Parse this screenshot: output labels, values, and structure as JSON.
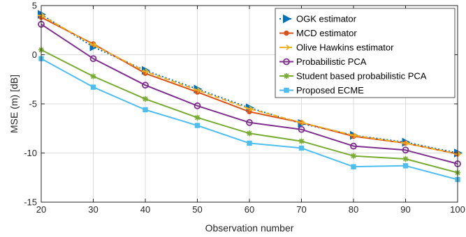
{
  "chart_data": {
    "type": "line",
    "xlabel": "Observation number",
    "ylabel": "MSE (m) [dB]",
    "xlim": [
      20,
      100
    ],
    "ylim": [
      -15,
      5
    ],
    "xticks": [
      20,
      30,
      40,
      50,
      60,
      70,
      80,
      90,
      100
    ],
    "yticks": [
      5,
      0,
      -5,
      -10,
      -15
    ],
    "grid": true,
    "legend_position": "top-right",
    "x": [
      20,
      30,
      40,
      50,
      60,
      70,
      80,
      90,
      100
    ],
    "series": [
      {
        "name": "OGK estimator",
        "color": "#0072BD",
        "marker": "triangle-right",
        "dash": "dotted",
        "values": [
          4.1,
          0.8,
          -1.6,
          -3.5,
          -5.4,
          -7.0,
          -8.2,
          -8.9,
          -10.0
        ]
      },
      {
        "name": "MCD estimator",
        "color": "#D95319",
        "marker": "circle",
        "dash": "solid",
        "values": [
          3.8,
          1.1,
          -1.9,
          -3.8,
          -5.8,
          -6.9,
          -8.3,
          -9.0,
          -10.1
        ]
      },
      {
        "name": "Olive Hawkins estimator",
        "color": "#EDB120",
        "marker": "arrow",
        "dash": "dashed",
        "values": [
          4.0,
          1.0,
          -1.7,
          -3.6,
          -5.5,
          -6.9,
          -8.2,
          -9.0,
          -10.1
        ]
      },
      {
        "name": "Probabilistic PCA",
        "color": "#7E2F8E",
        "marker": "circle-open",
        "dash": "solid",
        "values": [
          3.1,
          -0.4,
          -3.1,
          -5.2,
          -6.9,
          -7.6,
          -9.3,
          -9.7,
          -11.1
        ]
      },
      {
        "name": "Student based probabilistic PCA",
        "color": "#77AC30",
        "marker": "asterisk",
        "dash": "solid",
        "values": [
          0.5,
          -2.2,
          -4.5,
          -6.4,
          -8.0,
          -8.8,
          -10.3,
          -10.6,
          -12.0
        ]
      },
      {
        "name": "Proposed ECME",
        "color": "#4DBEEE",
        "marker": "square",
        "dash": "solid",
        "values": [
          -0.4,
          -3.3,
          -5.6,
          -7.2,
          -9.0,
          -9.5,
          -11.4,
          -11.3,
          -12.7
        ]
      }
    ]
  }
}
